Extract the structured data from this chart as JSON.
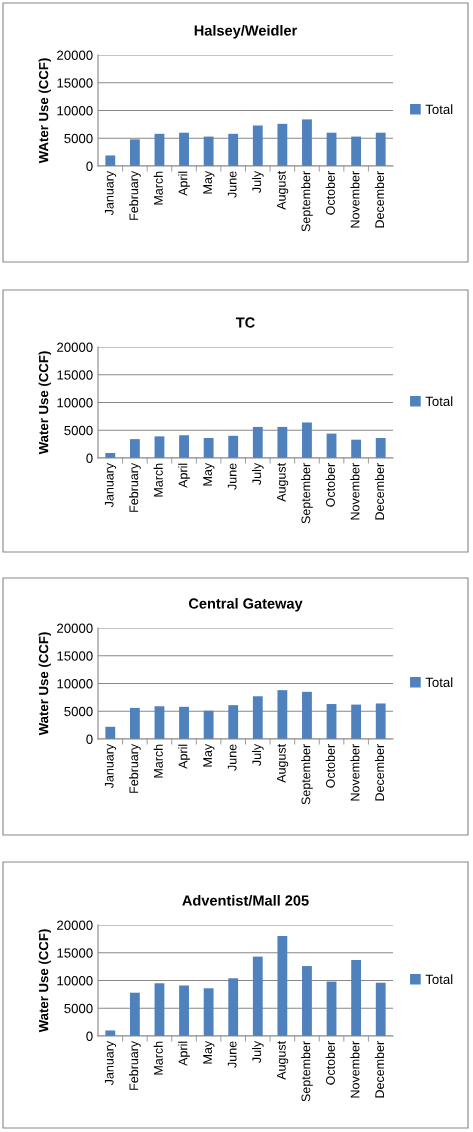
{
  "chart_data": [
    {
      "type": "bar",
      "title": "Halsey/Weidler",
      "ylabel": "WAter Use (CCF)",
      "categories": [
        "January",
        "February",
        "March",
        "April",
        "May",
        "June",
        "July",
        "August",
        "September",
        "October",
        "November",
        "December"
      ],
      "series": [
        {
          "name": "Total",
          "color": "#4f81bd",
          "values": [
            1900,
            4800,
            5800,
            6000,
            5300,
            5800,
            7300,
            7600,
            8400,
            6000,
            5300,
            6000
          ]
        }
      ],
      "ylim": [
        0,
        20000
      ],
      "yticks": [
        0,
        5000,
        10000,
        15000,
        20000
      ],
      "grid": "y",
      "legend": "right"
    },
    {
      "type": "bar",
      "title": "TC",
      "ylabel": "Water Use (CCF)",
      "categories": [
        "January",
        "February",
        "March",
        "April",
        "May",
        "June",
        "July",
        "August",
        "September",
        "October",
        "November",
        "December"
      ],
      "series": [
        {
          "name": "Total",
          "color": "#4f81bd",
          "values": [
            900,
            3400,
            3900,
            4100,
            3600,
            4000,
            5600,
            5600,
            6400,
            4400,
            3300,
            3600
          ]
        }
      ],
      "ylim": [
        0,
        20000
      ],
      "yticks": [
        0,
        5000,
        10000,
        15000,
        20000
      ],
      "grid": "y",
      "legend": "right"
    },
    {
      "type": "bar",
      "title": "Central Gateway",
      "ylabel": "Water Use (CCF)",
      "categories": [
        "January",
        "February",
        "March",
        "April",
        "May",
        "June",
        "July",
        "August",
        "September",
        "October",
        "November",
        "December"
      ],
      "series": [
        {
          "name": "Total",
          "color": "#4f81bd",
          "values": [
            2200,
            5600,
            5900,
            5800,
            5100,
            6100,
            7700,
            8800,
            8500,
            6300,
            6200,
            6400
          ]
        }
      ],
      "ylim": [
        0,
        20000
      ],
      "yticks": [
        0,
        5000,
        10000,
        15000,
        20000
      ],
      "grid": "y",
      "legend": "right"
    },
    {
      "type": "bar",
      "title": "Adventist/Mall 205",
      "ylabel": "Water Use (CCF)",
      "categories": [
        "January",
        "February",
        "March",
        "April",
        "May",
        "June",
        "July",
        "August",
        "September",
        "October",
        "November",
        "December"
      ],
      "series": [
        {
          "name": "Total",
          "color": "#4f81bd",
          "values": [
            1000,
            7800,
            9500,
            9100,
            8600,
            10400,
            14300,
            18000,
            12600,
            9800,
            13700,
            9600
          ]
        }
      ],
      "ylim": [
        0,
        20000
      ],
      "yticks": [
        0,
        5000,
        10000,
        15000,
        20000
      ],
      "grid": "y",
      "legend": "right"
    }
  ]
}
